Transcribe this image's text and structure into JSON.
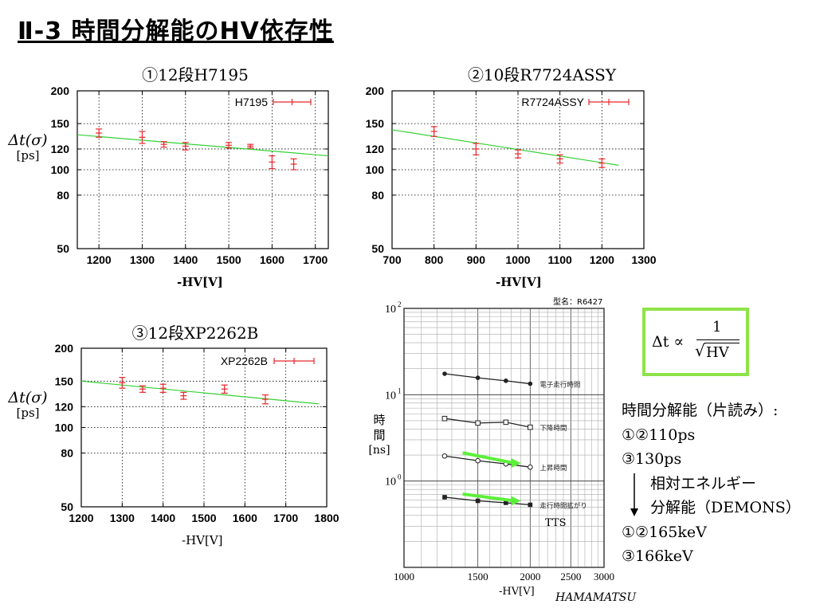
{
  "slide_title": "Ⅱ-3  時間分解能のHV依存性",
  "plots": {
    "p1": {
      "title": "①12段H7195",
      "ylabel_main": "Δt(σ)",
      "ylabel_unit": "[ps]",
      "xlabel": "-HV[V]"
    },
    "p2": {
      "title": "②10段R7724ASSY",
      "xlabel": "-HV[V]"
    },
    "p3": {
      "title": "③12段XP2262B",
      "ylabel_main": "Δt(σ)",
      "ylabel_unit": "[ps]",
      "xlabel": "-HV[V]"
    }
  },
  "formula": {
    "lhs": "Δt ∝",
    "numerator": "1",
    "denominator": "HV"
  },
  "notes": {
    "heading": "時間分解能（片読み）:",
    "line1": "①②110ps",
    "line2": "③130ps",
    "line3": "相対エネルギー",
    "line4": "分解能（DEMONS）",
    "line5": "①②165keV",
    "line6": "③166keV"
  },
  "hamamatsu": {
    "model": "型名：R6427",
    "ylabel_1": "時",
    "ylabel_2": "間",
    "ylabel_unit": "[ns]",
    "xlabel": "-HV[V]",
    "credit": "HAMAMATSU",
    "tts_label": "TTS",
    "ytick_labels": [
      "10",
      "10",
      "10"
    ],
    "ytick_exponents": [
      "2",
      "1",
      "0"
    ]
  },
  "chart_data": [
    {
      "type": "scatter",
      "title": "①12段H7195",
      "xlabel": "-HV[V]",
      "ylabel": "Δt(σ) [ps]",
      "yscale": "log",
      "xlim": [
        1150,
        1730
      ],
      "ylim": [
        50,
        200
      ],
      "xticks": [
        1200,
        1300,
        1400,
        1500,
        1600,
        1700
      ],
      "yticks": [
        50,
        80,
        100,
        120,
        150,
        200
      ],
      "legend_position": "top-right",
      "grid": true,
      "series": [
        {
          "name": "H7195",
          "color": "#e8272c",
          "x": [
            1200,
            1300,
            1350,
            1400,
            1500,
            1550,
            1600,
            1650
          ],
          "y": [
            138,
            133,
            125,
            123,
            124,
            123,
            107,
            105
          ],
          "yerr": [
            5,
            7,
            3,
            4,
            3,
            2,
            6,
            5
          ]
        }
      ],
      "fit": {
        "color": "#33d133",
        "x": [
          1150,
          1730
        ],
        "y": [
          136,
          113
        ]
      }
    },
    {
      "type": "scatter",
      "title": "②10段R7724ASSY",
      "xlabel": "-HV[V]",
      "ylabel": "",
      "yscale": "log",
      "xlim": [
        700,
        1300
      ],
      "ylim": [
        50,
        200
      ],
      "xticks": [
        700,
        800,
        900,
        1000,
        1100,
        1200,
        1300
      ],
      "yticks": [
        50,
        80,
        100,
        120,
        150,
        200
      ],
      "legend_position": "top-right",
      "grid": true,
      "series": [
        {
          "name": "R7724ASSY",
          "color": "#e8272c",
          "x": [
            800,
            900,
            1000,
            1100,
            1200
          ],
          "y": [
            140,
            120,
            115,
            110,
            106
          ],
          "yerr": [
            6,
            6,
            4,
            4,
            4
          ]
        }
      ],
      "fit": {
        "color": "#33d133",
        "x": [
          700,
          1240
        ],
        "y": [
          142,
          104
        ]
      }
    },
    {
      "type": "scatter",
      "title": "③12段XP2262B",
      "xlabel": "-HV[V]",
      "ylabel": "Δt(σ) [ps]",
      "yscale": "log",
      "xlim": [
        1200,
        1800
      ],
      "ylim": [
        50,
        200
      ],
      "xticks": [
        1200,
        1300,
        1400,
        1500,
        1600,
        1700,
        1800
      ],
      "yticks": [
        50,
        80,
        100,
        120,
        150,
        200
      ],
      "legend_position": "top-right",
      "grid": true,
      "series": [
        {
          "name": "XP2262B",
          "color": "#e8272c",
          "x": [
            1300,
            1350,
            1400,
            1450,
            1550,
            1650
          ],
          "y": [
            148,
            140,
            141,
            132,
            140,
            128
          ],
          "yerr": [
            7,
            4,
            5,
            4,
            5,
            5
          ]
        }
      ],
      "fit": {
        "color": "#33d133",
        "x": [
          1200,
          1780
        ],
        "y": [
          150,
          123
        ]
      }
    },
    {
      "type": "line",
      "xlabel": "-HV[V]",
      "ylabel": "時間 [ns]",
      "xscale": "log",
      "yscale": "log",
      "xlim": [
        1000,
        3000
      ],
      "ylim": [
        0.1,
        100
      ],
      "xticks": [
        1000,
        1500,
        2000,
        2500,
        3000
      ],
      "grid": true,
      "series": [
        {
          "name": "電子走行時間",
          "marker": "filled-circle",
          "x": [
            1250,
            1500,
            1750,
            2000
          ],
          "y": [
            17.5,
            15.7,
            14.5,
            13.4
          ]
        },
        {
          "name": "下降時間",
          "marker": "open-square",
          "x": [
            1250,
            1500,
            1750,
            2000
          ],
          "y": [
            5.3,
            4.7,
            4.8,
            4.2
          ]
        },
        {
          "name": "上昇時間",
          "marker": "open-circle",
          "x": [
            1250,
            1500,
            1750,
            2000
          ],
          "y": [
            1.95,
            1.72,
            1.58,
            1.45
          ]
        },
        {
          "name": "走行時間拡がり",
          "marker": "filled-square",
          "x": [
            1250,
            1500,
            1750,
            2000
          ],
          "y": [
            0.65,
            0.59,
            0.56,
            0.53
          ]
        }
      ],
      "annotations": [
        {
          "text": "TTS",
          "target_series": "走行時間拡がり"
        }
      ],
      "highlight_arrows": [
        {
          "color": "#5cf03a",
          "target_series": "上昇時間"
        },
        {
          "color": "#5cf03a",
          "target_series": "走行時間拡がり"
        }
      ]
    }
  ]
}
